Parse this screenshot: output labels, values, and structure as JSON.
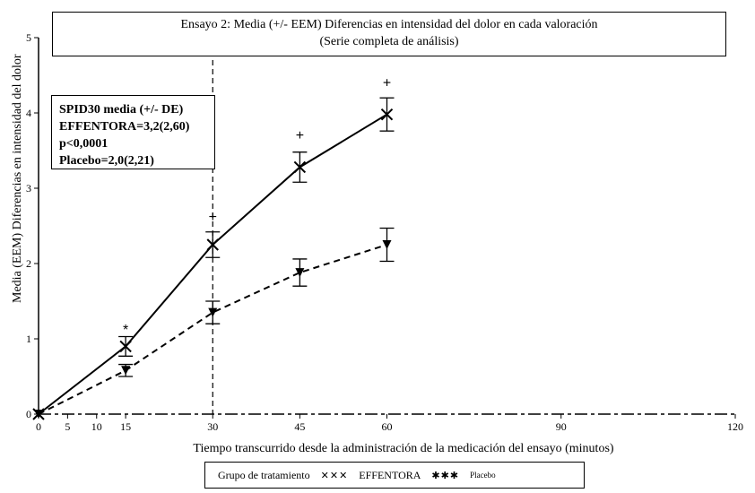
{
  "chart_data": {
    "type": "line",
    "title": "Ensayo 2: Media (+/- EEM) Diferencias en intensidad del dolor en cada valoración",
    "subtitle": "(Serie completa de análisis)",
    "xlabel": "Tiempo transcurrido desde la administración de la medicación del ensayo (minutos)",
    "ylabel": "Media (EEM) Diferencias en intensidad del dolor",
    "xlim": [
      0,
      120
    ],
    "ylim": [
      0,
      5
    ],
    "x_ticks": [
      "0",
      "5",
      "10",
      "15",
      "30",
      "45",
      "60",
      "90",
      "120"
    ],
    "y_ticks": [
      "0",
      "1",
      "2",
      "3",
      "4",
      "5"
    ],
    "reference_line_x": 30,
    "series": [
      {
        "name": "EFFENTORA",
        "style": "solid",
        "x": [
          0,
          15,
          30,
          45,
          60
        ],
        "y": [
          0,
          0.9,
          2.25,
          3.28,
          3.98
        ],
        "err": [
          0,
          0.13,
          0.17,
          0.2,
          0.22
        ]
      },
      {
        "name": "Placebo",
        "style": "dashed",
        "x": [
          0,
          15,
          30,
          45,
          60
        ],
        "y": [
          0,
          0.58,
          1.35,
          1.88,
          2.25
        ],
        "err": [
          0,
          0.08,
          0.15,
          0.18,
          0.22
        ]
      }
    ],
    "significance_markers": [
      {
        "x": 15,
        "y": 1.12,
        "symbol": "*"
      },
      {
        "x": 30,
        "y": 2.62,
        "symbol": "+"
      },
      {
        "x": 45,
        "y": 3.7,
        "symbol": "+"
      },
      {
        "x": 60,
        "y": 4.4,
        "symbol": "+"
      }
    ],
    "annotation": [
      "SPID30 media (+/- DE)",
      "EFFENTORA=3,2(2,60) p<0,0001",
      "Placebo=2,0(2,21)"
    ],
    "legend": {
      "title": "Grupo de tratamiento",
      "entries": [
        "EFFENTORA",
        "Placebo"
      ],
      "placement": "bottom"
    }
  }
}
